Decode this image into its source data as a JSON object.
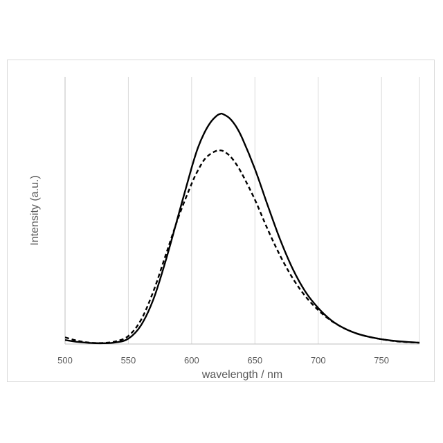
{
  "chart_data": {
    "type": "line",
    "title": "",
    "xlabel": "wavelength / nm",
    "ylabel": "Intensity (a.u.)",
    "xlim": [
      500,
      780
    ],
    "ylim": [
      0,
      1.0
    ],
    "x_ticks": [
      "500",
      "550",
      "600",
      "650",
      "700",
      "750"
    ],
    "y_ticks_shown": false,
    "grid": "vertical",
    "legend": "none",
    "series": [
      {
        "style": "solid",
        "color": "#000000",
        "x": [
          500,
          510,
          520,
          530,
          540,
          550,
          560,
          570,
          580,
          590,
          600,
          605,
          610,
          615,
          620,
          623,
          625,
          630,
          635,
          640,
          650,
          660,
          670,
          680,
          690,
          700,
          710,
          720,
          730,
          740,
          750,
          760,
          770,
          780
        ],
        "y": [
          0.015,
          0.008,
          0.004,
          0.003,
          0.006,
          0.02,
          0.07,
          0.17,
          0.32,
          0.49,
          0.66,
          0.735,
          0.79,
          0.83,
          0.855,
          0.862,
          0.86,
          0.845,
          0.815,
          0.77,
          0.655,
          0.52,
          0.39,
          0.28,
          0.195,
          0.135,
          0.09,
          0.06,
          0.04,
          0.027,
          0.018,
          0.012,
          0.008,
          0.005
        ]
      },
      {
        "style": "dashed",
        "color": "#000000",
        "x": [
          500,
          510,
          520,
          530,
          540,
          550,
          560,
          570,
          580,
          590,
          600,
          605,
          610,
          615,
          620,
          622,
          625,
          630,
          635,
          640,
          650,
          660,
          670,
          680,
          690,
          700,
          710,
          720,
          730,
          740,
          750,
          760,
          770,
          780
        ],
        "y": [
          0.025,
          0.012,
          0.005,
          0.004,
          0.01,
          0.03,
          0.09,
          0.2,
          0.34,
          0.48,
          0.6,
          0.65,
          0.69,
          0.712,
          0.724,
          0.725,
          0.722,
          0.705,
          0.675,
          0.635,
          0.54,
          0.43,
          0.33,
          0.245,
          0.178,
          0.127,
          0.088,
          0.06,
          0.04,
          0.027,
          0.018,
          0.011,
          0.007,
          0.005
        ]
      }
    ]
  }
}
